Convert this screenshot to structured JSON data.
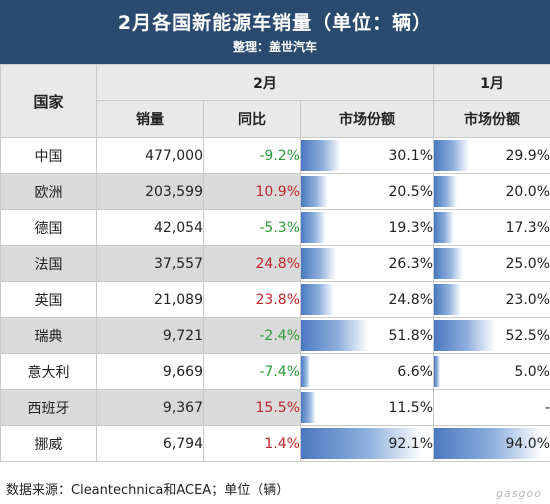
{
  "header": {
    "title": "2月各国新能源车销量（单位：辆）",
    "subtitle": "整理：盖世汽车"
  },
  "columns": {
    "country": "国家",
    "feb": "2月",
    "jan": "1月",
    "sales": "销量",
    "yoy": "同比",
    "share_feb": "市场份额",
    "share_jan": "市场份额"
  },
  "rows": [
    {
      "country": "中国",
      "sales": "477,000",
      "yoy": "-9.2%",
      "share_feb": "30.1%",
      "share_jan": "29.9%"
    },
    {
      "country": "欧洲",
      "sales": "203,599",
      "yoy": "10.9%",
      "share_feb": "20.5%",
      "share_jan": "20.0%"
    },
    {
      "country": "德国",
      "sales": "42,054",
      "yoy": "-5.3%",
      "share_feb": "19.3%",
      "share_jan": "17.3%"
    },
    {
      "country": "法国",
      "sales": "37,557",
      "yoy": "24.8%",
      "share_feb": "26.3%",
      "share_jan": "25.0%"
    },
    {
      "country": "英国",
      "sales": "21,089",
      "yoy": "23.8%",
      "share_feb": "24.8%",
      "share_jan": "23.0%"
    },
    {
      "country": "瑞典",
      "sales": "9,721",
      "yoy": "-2.4%",
      "share_feb": "51.8%",
      "share_jan": "52.5%"
    },
    {
      "country": "意大利",
      "sales": "9,669",
      "yoy": "-7.4%",
      "share_feb": "6.6%",
      "share_jan": "5.0%"
    },
    {
      "country": "西班牙",
      "sales": "9,367",
      "yoy": "15.5%",
      "share_feb": "11.5%",
      "share_jan": "-"
    },
    {
      "country": "挪威",
      "sales": "6,794",
      "yoy": "1.4%",
      "share_feb": "92.1%",
      "share_jan": "94.0%"
    }
  ],
  "footer": {
    "source": "数据来源：Cleantechnica和ACEA；单位（辆）"
  },
  "watermark": "gasgoo",
  "colors": {
    "header_bg": "#2a4a6f",
    "negative_yoy": "#2e9a3a",
    "positive_yoy": "#c0272d",
    "bar": "#4a78c0"
  },
  "chart_data": {
    "type": "table",
    "title": "2月各国新能源车销量（单位：辆）",
    "columns": [
      "国家",
      "2月 销量",
      "2月 同比",
      "2月 市场份额",
      "1月 市场份额"
    ],
    "categories": [
      "中国",
      "欧洲",
      "德国",
      "法国",
      "英国",
      "瑞典",
      "意大利",
      "西班牙",
      "挪威"
    ],
    "series": [
      {
        "name": "销量",
        "values": [
          477000,
          203599,
          42054,
          37557,
          21089,
          9721,
          9669,
          9367,
          6794
        ]
      },
      {
        "name": "同比",
        "values": [
          -9.2,
          10.9,
          -5.3,
          24.8,
          23.8,
          -2.4,
          -7.4,
          15.5,
          1.4
        ]
      },
      {
        "name": "市场份额",
        "values": [
          30.1,
          20.5,
          19.3,
          26.3,
          24.8,
          51.8,
          6.6,
          11.5,
          92.1
        ]
      },
      {
        "name": "市场份额",
        "values": [
          29.9,
          20.0,
          17.3,
          25.0,
          23.0,
          52.5,
          5.0,
          null,
          94.0
        ]
      }
    ]
  }
}
